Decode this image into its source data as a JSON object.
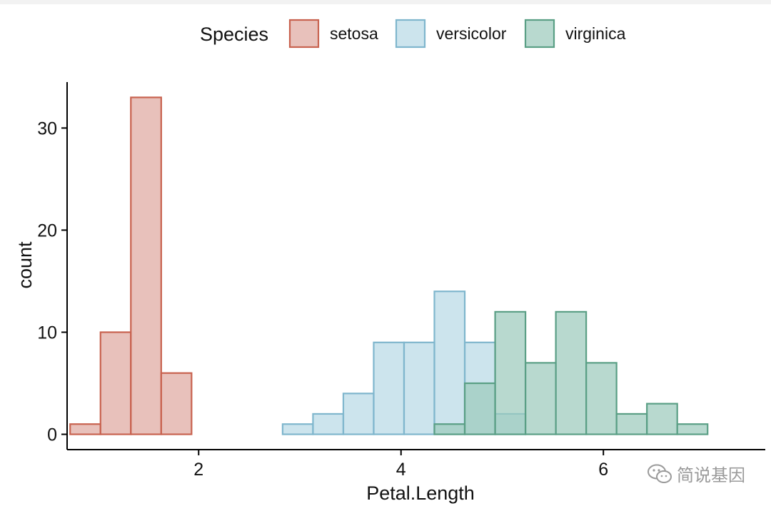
{
  "chart_data": {
    "type": "histogram",
    "x_label": "Petal.Length",
    "y_label": "count",
    "x_range": [
      0.7,
      7.6
    ],
    "y_range": [
      -1.5,
      34.5
    ],
    "x_ticks": [
      2,
      4,
      6
    ],
    "y_ticks": [
      0,
      10,
      20,
      30
    ],
    "bin_width": 0.3,
    "legend": {
      "title": "Species",
      "position": "top",
      "entries": [
        {
          "name": "setosa",
          "fill": "#dfa9a1",
          "stroke": "#c8624f"
        },
        {
          "name": "versicolor",
          "fill": "#b9dae6",
          "stroke": "#7fb6cd"
        },
        {
          "name": "virginica",
          "fill": "#9ccbbd",
          "stroke": "#5a9f85"
        }
      ]
    },
    "series": [
      {
        "name": "setosa",
        "fill": "#dfa9a1",
        "stroke": "#c8624f",
        "bins": [
          {
            "x0": 0.73,
            "count": 1
          },
          {
            "x0": 1.03,
            "count": 10
          },
          {
            "x0": 1.33,
            "count": 33
          },
          {
            "x0": 1.63,
            "count": 6
          },
          {
            "x0": 1.93,
            "count": 0
          },
          {
            "x0": 2.23,
            "count": 0
          },
          {
            "x0": 2.53,
            "count": 0
          },
          {
            "x0": 2.83,
            "count": 0
          },
          {
            "x0": 3.13,
            "count": 0
          },
          {
            "x0": 3.43,
            "count": 0
          },
          {
            "x0": 3.73,
            "count": 0
          },
          {
            "x0": 4.03,
            "count": 0
          },
          {
            "x0": 4.33,
            "count": 0
          },
          {
            "x0": 4.63,
            "count": 0
          },
          {
            "x0": 4.93,
            "count": 0
          },
          {
            "x0": 5.23,
            "count": 0
          },
          {
            "x0": 5.53,
            "count": 0
          },
          {
            "x0": 5.83,
            "count": 0
          },
          {
            "x0": 6.13,
            "count": 0
          },
          {
            "x0": 6.43,
            "count": 0
          },
          {
            "x0": 6.73,
            "count": 0
          }
        ]
      },
      {
        "name": "versicolor",
        "fill": "#b9dae6",
        "stroke": "#7fb6cd",
        "bins": [
          {
            "x0": 2.83,
            "count": 1
          },
          {
            "x0": 3.13,
            "count": 2
          },
          {
            "x0": 3.43,
            "count": 4
          },
          {
            "x0": 3.73,
            "count": 9
          },
          {
            "x0": 4.03,
            "count": 9
          },
          {
            "x0": 4.33,
            "count": 14
          },
          {
            "x0": 4.63,
            "count": 9
          },
          {
            "x0": 4.93,
            "count": 2
          }
        ]
      },
      {
        "name": "virginica",
        "fill": "#9ccbbd",
        "stroke": "#5a9f85",
        "bins": [
          {
            "x0": 4.33,
            "count": 1
          },
          {
            "x0": 4.63,
            "count": 5
          },
          {
            "x0": 4.93,
            "count": 12
          },
          {
            "x0": 5.23,
            "count": 7
          },
          {
            "x0": 5.53,
            "count": 12
          },
          {
            "x0": 5.83,
            "count": 7
          },
          {
            "x0": 6.13,
            "count": 2
          },
          {
            "x0": 6.43,
            "count": 3
          },
          {
            "x0": 6.73,
            "count": 1
          }
        ]
      }
    ]
  },
  "watermark": {
    "text": "简说基因",
    "icon": "wechat-icon"
  }
}
